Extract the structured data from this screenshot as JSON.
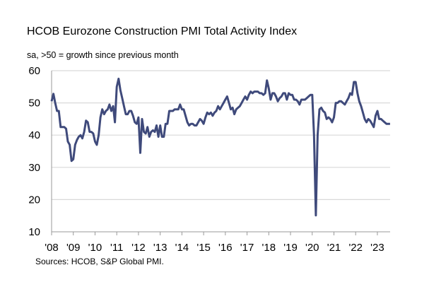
{
  "chart_data": {
    "type": "line",
    "title": "HCOB Eurozone Construction PMI Total Activity Index",
    "subtitle": "sa, >50 = growth since previous month",
    "source": "Sources: HCOB, S&P Global PMI.",
    "ylim": [
      10,
      60
    ],
    "yticks": [
      10,
      20,
      30,
      40,
      50,
      60
    ],
    "xticks": [
      "'08",
      "'09",
      "'10",
      "'11",
      "'12",
      "'13",
      "'14",
      "'15",
      "'16",
      "'17",
      "'18",
      "'19",
      "'20",
      "'21",
      "'22",
      "'23"
    ],
    "grid": "horizontal",
    "line_color": "#3f4a7b",
    "frequency": "monthly",
    "series": [
      {
        "values_by_year": {
          "2008": [
            50.5,
            52.8,
            50,
            47.5,
            47.5,
            42.5,
            42.5,
            42.5,
            42,
            38,
            37,
            32
          ],
          "2009": [
            32.5,
            37,
            38.5,
            39.5,
            40,
            39,
            41,
            44.5,
            44,
            41,
            41,
            40.5
          ],
          "2010": [
            38,
            37,
            40,
            45.5,
            48,
            46.5,
            47.5,
            48,
            49.5,
            47.5,
            49,
            44
          ],
          "2011": [
            55,
            57.5,
            54,
            51.5,
            49,
            46.5,
            46.5,
            47.5,
            47.5,
            46,
            44,
            43.5
          ],
          "2012": [
            45.5,
            34.5,
            45,
            41,
            40.5,
            42.5,
            39.5,
            41,
            41.5,
            41,
            43,
            39.5
          ],
          "2013": [
            43,
            39.5,
            39.5,
            43.5,
            43.5,
            47.5,
            47.5,
            47.5,
            48,
            48,
            48,
            49.5
          ],
          "2014": [
            48,
            48,
            46,
            44,
            43,
            43.5,
            43.5,
            43,
            43,
            44,
            45,
            44.5
          ],
          "2015": [
            43.5,
            45.5,
            47,
            46.5,
            47,
            46,
            47,
            47.5,
            49,
            48,
            49,
            50
          ],
          "2016": [
            51,
            52,
            50,
            48,
            48.5,
            46.5,
            48,
            48.5,
            49,
            50,
            51,
            52
          ],
          "2017": [
            51,
            52.5,
            53.5,
            53,
            53.5,
            53.5,
            53.5,
            53,
            53,
            52.5,
            53,
            57
          ],
          "2018": [
            54.5,
            51,
            53,
            53,
            52,
            50.5,
            51.5,
            52,
            53,
            53,
            51,
            53
          ],
          "2019": [
            52.5,
            52.5,
            51,
            51,
            50.5,
            49.5,
            51,
            51,
            51,
            51.5,
            52,
            52.5
          ],
          "2020": [
            52.5,
            40,
            15.1,
            40,
            48,
            48.5,
            47.5,
            47,
            45,
            45.5,
            45,
            44
          ],
          "2021": [
            45.5,
            50,
            50,
            50.5,
            50.5,
            50,
            49.5,
            50.5,
            51.5,
            53,
            52.5,
            56.5
          ],
          "2022": [
            56.5,
            53,
            50.5,
            49,
            47,
            45,
            44,
            45,
            44.5,
            43.5,
            42.5,
            46
          ],
          "2023": [
            47.5,
            45,
            45,
            44.5,
            44,
            43.5,
            43.5,
            43.5
          ]
        }
      }
    ]
  }
}
